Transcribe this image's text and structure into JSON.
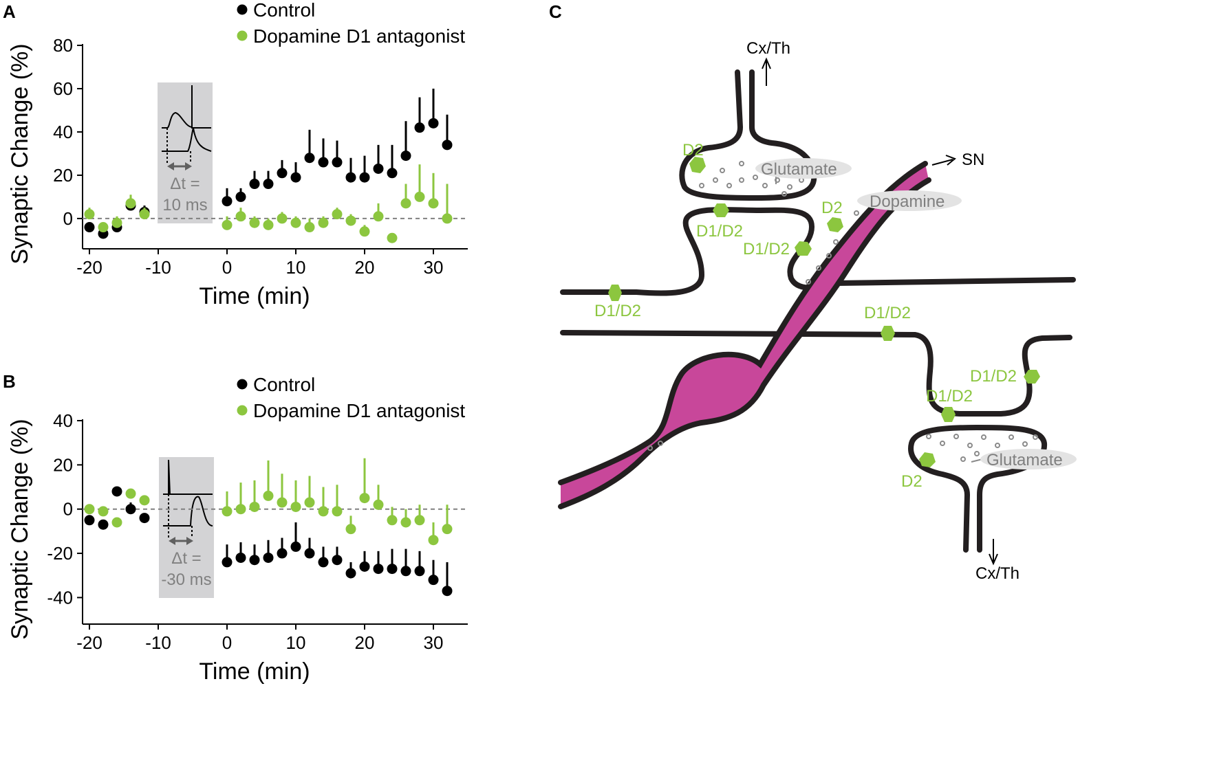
{
  "colors": {
    "control": "#000000",
    "antagonist": "#8cc63f",
    "axon": "#c83e96",
    "inset_bg": "#d3d3d5",
    "ellipse": "#e0e0e0",
    "gray_text": "#808080"
  },
  "chart_data": [
    {
      "type": "scatter",
      "panel": "A",
      "xlabel": "Time (min)",
      "ylabel": "Synaptic Change (%)",
      "xlim": [
        -21,
        35
      ],
      "ylim": [
        -14,
        80
      ],
      "xticks": [
        -20,
        -10,
        0,
        10,
        20,
        30
      ],
      "yticks": [
        0,
        20,
        40,
        60,
        80
      ],
      "zero_line": "dashed",
      "legend": "top-center",
      "inset": {
        "label_line1": "Δt =",
        "label_line2": "10 ms"
      },
      "series": [
        {
          "name": "Control",
          "x": [
            -20,
            -18,
            -16,
            -14,
            -12,
            0,
            2,
            4,
            6,
            8,
            10,
            12,
            14,
            16,
            18,
            20,
            22,
            24,
            26,
            28,
            30,
            32
          ],
          "y": [
            -4,
            -7,
            -4,
            6,
            3,
            8,
            10,
            16,
            16,
            21,
            19,
            28,
            26,
            26,
            19,
            19,
            23,
            21,
            29,
            42,
            44,
            34
          ],
          "err": [
            0,
            0,
            0,
            3,
            3,
            6,
            4,
            6,
            6,
            6,
            7,
            13,
            11,
            10,
            9,
            10,
            11,
            13,
            16,
            14,
            16,
            14
          ]
        },
        {
          "name": "Dopamine D1 antagonist",
          "x": [
            -20,
            -18,
            -16,
            -14,
            -12,
            0,
            2,
            4,
            6,
            8,
            10,
            12,
            14,
            16,
            18,
            20,
            22,
            24,
            26,
            28,
            30,
            32
          ],
          "y": [
            2,
            -4,
            -2,
            7,
            2,
            -3,
            1,
            -2,
            -3,
            0,
            -2,
            -4,
            -2,
            2,
            -1,
            -6,
            1,
            -9,
            7,
            10,
            7,
            0
          ],
          "err": [
            3,
            2,
            3,
            4,
            3,
            4,
            4,
            3,
            3,
            3,
            3,
            4,
            3,
            3,
            3,
            3,
            6,
            0,
            9,
            15,
            14,
            16
          ]
        }
      ]
    },
    {
      "type": "scatter",
      "panel": "B",
      "xlabel": "Time (min)",
      "ylabel": "Synaptic Change (%)",
      "xlim": [
        -21,
        35
      ],
      "ylim": [
        -52,
        40
      ],
      "xticks": [
        -20,
        -10,
        0,
        10,
        20,
        30
      ],
      "yticks": [
        -40,
        -20,
        0,
        20,
        40
      ],
      "zero_line": "dashed",
      "legend": "top-center",
      "inset": {
        "label_line1": "Δt =",
        "label_line2": "-30 ms"
      },
      "series": [
        {
          "name": "Control",
          "x": [
            -20,
            -18,
            -16,
            -14,
            -12,
            0,
            2,
            4,
            6,
            8,
            10,
            12,
            14,
            16,
            18,
            20,
            22,
            24,
            26,
            28,
            30,
            32
          ],
          "y": [
            -5,
            -7,
            8,
            0,
            -4,
            -24,
            -22,
            -23,
            -22,
            -20,
            -17,
            -20,
            -24,
            -23,
            -29,
            -26,
            -27,
            -27,
            -28,
            -28,
            -32,
            -37
          ],
          "err": [
            0,
            0,
            2,
            3,
            0,
            8,
            7,
            7,
            8,
            7,
            11,
            7,
            7,
            6,
            5,
            7,
            8,
            9,
            10,
            9,
            9,
            13
          ]
        },
        {
          "name": "Dopamine D1 antagonist",
          "x": [
            -20,
            -18,
            -16,
            -14,
            -12,
            0,
            2,
            4,
            6,
            8,
            10,
            12,
            14,
            16,
            18,
            20,
            22,
            24,
            26,
            28,
            30,
            32
          ],
          "y": [
            0,
            -1,
            -6,
            7,
            4,
            -1,
            0,
            1,
            6,
            3,
            1,
            3,
            -1,
            -1,
            -9,
            5,
            2,
            -5,
            -6,
            -5,
            -14,
            -9
          ],
          "err": [
            0,
            0,
            0,
            2,
            0,
            9,
            12,
            12,
            16,
            13,
            12,
            12,
            11,
            12,
            6,
            18,
            9,
            6,
            6,
            7,
            8,
            11
          ]
        }
      ]
    }
  ],
  "panel_labels": {
    "a": "A",
    "b": "B",
    "c": "C"
  },
  "diagram": {
    "top_target": "Cx/Th",
    "bottom_target": "Cx/Th",
    "sn": "SN",
    "glutamate_top": "Glutamate",
    "glutamate_bottom": "Glutamate",
    "dopamine": "Dopamine",
    "receptors": [
      "D2",
      "D1/D2",
      "D2",
      "D1/D2",
      "D1/D2",
      "D1/D2",
      "D1/D2",
      "D1/D2",
      "D2"
    ]
  }
}
